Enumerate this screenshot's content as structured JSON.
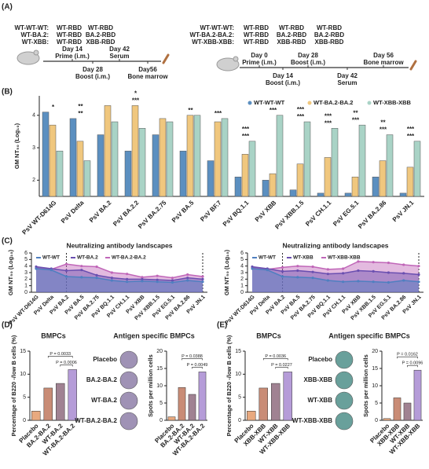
{
  "panel_labels": [
    "(A)",
    "(B)",
    "(C)",
    "(D)",
    "(E)"
  ],
  "schedule": {
    "left": {
      "groups": [
        "WT-WT-WT:",
        "WT-BA.2:",
        "WT-XBB:"
      ],
      "columns": [
        [
          "WT-RBD",
          "WT-RBD",
          "WT-RBD"
        ],
        [
          "WT-RBD",
          "BA.2-RBD",
          "XBB-RBD"
        ]
      ],
      "above": [
        {
          "day": "Day 14",
          "event": "Prime (i.m.)"
        },
        {
          "day": "Day 42",
          "event": "Serum"
        }
      ],
      "below": [
        {
          "day": "Day 28",
          "event": "Boost (i.m.)"
        },
        {
          "day": "Day56",
          "event": "Bone marrow"
        }
      ]
    },
    "right": {
      "groups": [
        "WT-WT-WT:",
        "WT-BA.2-BA.2:",
        "WT-XBB-XBB:"
      ],
      "columns": [
        [
          "WT-RBD",
          "WT-RBD",
          "WT-RBD"
        ],
        [
          "WT-RBD",
          "BA.2-RBD",
          "XBB-RBD"
        ],
        [
          "WT-RBD",
          "BA.2-RBD",
          "XBB-RBD"
        ]
      ],
      "above": [
        {
          "day": "Day 0",
          "event": "Prime (i.m.)"
        },
        {
          "day": "Day 28",
          "event": "Boost (i.m.)"
        },
        {
          "day": "Day 56",
          "event": "Bone marrow"
        }
      ],
      "below": [
        {
          "day": "Day 14",
          "event": "Boost (i.m.)"
        },
        {
          "day": "Day 42",
          "event": "Serum"
        }
      ]
    }
  },
  "chart_data": [
    {
      "type": "bar",
      "y_label": "GM NT₅₀ (Log₁₀)",
      "categories": [
        "PsV WT-D614G",
        "PsV Delta",
        "PsV BA.2",
        "PsV BA.2.2",
        "PsV BA.2.75",
        "PsV BA.5",
        "PsV BF.7",
        "PsV BQ.1.1",
        "PsV XBB",
        "PsV XBB.1.5",
        "PsV CH.1.1",
        "PsV EG.5.1",
        "PsV BA.2.86",
        "PsV JN.1"
      ],
      "series": [
        {
          "name": "WT-WT-WT",
          "color": "#5b8fc0",
          "values": [
            4.1,
            3.9,
            3.4,
            2.9,
            3.4,
            2.9,
            2.6,
            2.1,
            2.0,
            1.7,
            1.6,
            1.6,
            2.1,
            1.6
          ]
        },
        {
          "name": "WT-BA.2-BA.2",
          "color": "#f0c77e",
          "values": [
            3.7,
            3.2,
            4.3,
            4.3,
            3.9,
            4.0,
            3.8,
            2.8,
            2.2,
            2.5,
            2.7,
            2.1,
            2.6,
            2.4
          ]
        },
        {
          "name": "WT-XBB-XBB",
          "color": "#a9d3c6",
          "values": [
            2.9,
            2.6,
            3.8,
            3.6,
            3.8,
            4.0,
            3.9,
            3.2,
            4.0,
            3.8,
            3.6,
            3.7,
            3.4,
            3.2
          ]
        }
      ],
      "significance": [
        [
          "*"
        ],
        [
          "**",
          "**"
        ],
        [],
        [
          "***",
          "*"
        ],
        [],
        [
          "**"
        ],
        [
          "***"
        ],
        [
          "***",
          "***"
        ],
        [
          "***"
        ],
        [
          "***",
          "***"
        ],
        [
          "***",
          "***"
        ],
        [
          "***",
          "**"
        ],
        [
          "***",
          "**"
        ],
        [
          "***",
          "***"
        ]
      ],
      "ylim": [
        1.5,
        4.6
      ],
      "yticks": [
        2,
        3,
        4
      ],
      "legend": "top-right"
    },
    {
      "type": "area",
      "title": "Neutralizing antibody landscapes",
      "y_label": "GM NT₅₀ (Log₁₀)",
      "categories": [
        "PsV WT-D614G",
        "PsV Delta",
        "PsV BA.2",
        "PsV BA.5",
        "PsV BA.2.75",
        "PsV BQ.1.1",
        "PsV CH.1.1",
        "PsV XBB",
        "PsV XBB.1.5",
        "PsV EG.5.1",
        "PsV BA.2.86",
        "PsV JN.1"
      ],
      "series": [
        {
          "name": "WT-WT",
          "color": "#4f7fc0",
          "values": [
            3.6,
            3.4,
            2.4,
            2.3,
            2.2,
            1.8,
            1.6,
            1.7,
            1.6,
            1.5,
            1.8,
            1.6
          ]
        },
        {
          "name": "WT-BA.2",
          "color": "#6a4fb0",
          "values": [
            3.9,
            3.6,
            3.3,
            3.4,
            2.6,
            2.2,
            2.0,
            2.0,
            1.9,
            1.8,
            2.2,
            2.0
          ]
        },
        {
          "name": "WT-BA.2-BA.2",
          "color": "#c066b8",
          "values": [
            3.7,
            3.5,
            4.3,
            4.0,
            3.9,
            3.0,
            2.8,
            2.3,
            2.5,
            2.2,
            2.7,
            2.4
          ]
        }
      ],
      "ylim": [
        0,
        6
      ],
      "yticks": [
        0,
        1,
        2,
        3,
        4,
        5,
        6
      ]
    },
    {
      "type": "area",
      "title": "Neutralizing antibody landscapes",
      "y_label": "GM NT₅₀ (Log₁₀)",
      "categories": [
        "PsV WT-D614G",
        "PsV Delta",
        "PsV BA.2",
        "PsV BA.5",
        "PsV BA.2.75",
        "PsV BQ.1.1",
        "PsV CH.1.1",
        "PsV XBB",
        "PsV XBB.1.5",
        "PsV EG.5.1",
        "PsV BA.2.86",
        "PsV JN.1"
      ],
      "series": [
        {
          "name": "WT-WT",
          "color": "#4f7fc0",
          "values": [
            3.6,
            3.4,
            2.4,
            2.3,
            2.2,
            1.8,
            1.6,
            1.7,
            1.6,
            1.5,
            1.8,
            1.6
          ]
        },
        {
          "name": "WT-XBB",
          "color": "#6a4fb0",
          "values": [
            3.9,
            3.6,
            3.2,
            3.3,
            3.1,
            2.8,
            2.9,
            3.3,
            3.2,
            3.0,
            2.9,
            2.7
          ]
        },
        {
          "name": "WT-XBB-XBB",
          "color": "#c066b8",
          "values": [
            3.8,
            3.5,
            3.8,
            4.0,
            3.9,
            3.5,
            3.6,
            4.7,
            4.6,
            4.5,
            4.2,
            4.0
          ]
        }
      ],
      "ylim": [
        0,
        6
      ],
      "yticks": [
        0,
        1,
        2,
        3,
        4,
        5,
        6
      ]
    },
    {
      "type": "bar",
      "title": "BMPCs",
      "y_label": "Percentage of B220 -/low B cells (%)",
      "categories": [
        "Placebo",
        "BA.2-BA.2",
        "WT-BA.2",
        "WT-BA.2-BA.2"
      ],
      "values": [
        2,
        7,
        8,
        11
      ],
      "colors": [
        "#e8a97f",
        "#c98c76",
        "#a08292",
        "#b59cd8"
      ],
      "annotations": [
        "P = 0.0033",
        "P = 0.0006"
      ],
      "ylim": [
        0,
        15
      ],
      "yticks": [
        0,
        5,
        10,
        15
      ]
    },
    {
      "type": "bar",
      "title": "Antigen specific BMPCs",
      "y_label": "Spots per million cells",
      "well_labels": [
        "Placebo",
        "BA.2-BA.2",
        "WT-BA.2",
        "WT-BA.2-BA.2"
      ],
      "well_color": "#8e7fa8",
      "categories": [
        "Placebo",
        "BA.2-BA.2",
        "WT-BA.2",
        "WT-BA.2-BA.2"
      ],
      "values": [
        1,
        9.5,
        7.5,
        14
      ],
      "colors": [
        "#e8a97f",
        "#c98c76",
        "#a08292",
        "#b59cd8"
      ],
      "annotations": [
        "P = 0.0388",
        "P = 0.0049"
      ],
      "ylim": [
        0,
        20
      ],
      "yticks": [
        0,
        5,
        10,
        15,
        20
      ]
    },
    {
      "type": "bar",
      "title": "BMPCs",
      "y_label": "Percentage of B220 -/low B cells (%)",
      "categories": [
        "Placebo",
        "XBB-XBB",
        "WT-XBB",
        "WT-XBB-XBB"
      ],
      "values": [
        2,
        7,
        8,
        10.5
      ],
      "colors": [
        "#e8a97f",
        "#c98c76",
        "#a08292",
        "#b59cd8"
      ],
      "annotations": [
        "P = 0.0036",
        "P = 0.0227"
      ],
      "ylim": [
        0,
        15
      ],
      "yticks": [
        0,
        5,
        10,
        15
      ]
    },
    {
      "type": "bar",
      "title": "Antigen specific BMPCs",
      "y_label": "Spots per million cells",
      "well_labels": [
        "Placebo",
        "XBB-XBB",
        "WT-XBB",
        "WT-XBB-XBB"
      ],
      "well_color": "#4f8f8a",
      "categories": [
        "Placebo",
        "XBB-XBB",
        "WT-XBB",
        "WT-XBB-XBB"
      ],
      "values": [
        0.5,
        6.5,
        5,
        14.5
      ],
      "colors": [
        "#e8a97f",
        "#c98c76",
        "#a08292",
        "#b59cd8"
      ],
      "annotations": [
        "P = 0.0162",
        "P = 0.0096"
      ],
      "ylim": [
        0,
        20
      ],
      "yticks": [
        0,
        5,
        10,
        15,
        20
      ]
    }
  ]
}
